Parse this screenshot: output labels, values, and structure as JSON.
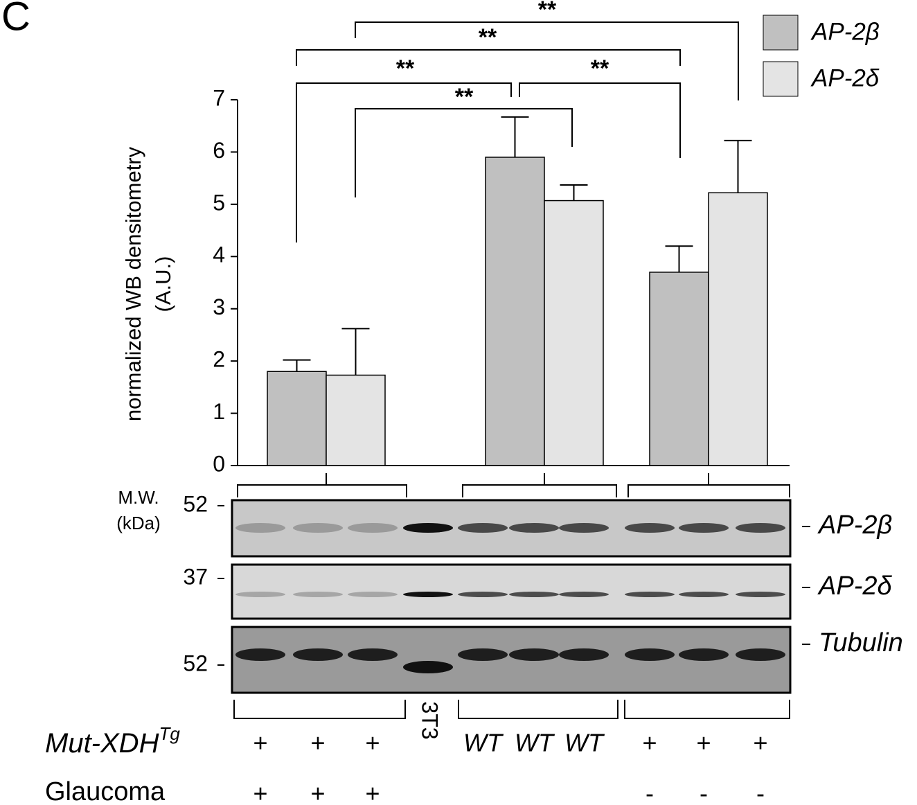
{
  "chart_data": {
    "type": "bar",
    "panel_label": "C",
    "y_label": [
      "normalized WB densitometry",
      "(A.U.)"
    ],
    "categories": [
      null,
      null,
      null
    ],
    "series": [
      {
        "name": "AP-2β",
        "color": "#c0c0c0",
        "values": [
          1.8,
          5.9,
          3.7
        ],
        "errors": [
          0.22,
          0.77,
          0.5
        ]
      },
      {
        "name": "AP-2δ",
        "color": "#e4e4e4",
        "values": [
          1.73,
          5.07,
          5.22
        ],
        "errors": [
          0.89,
          0.3,
          1.0
        ]
      }
    ],
    "ylim": [
      0,
      7
    ],
    "yticks": [
      0,
      1,
      2,
      3,
      4,
      5,
      6,
      7
    ],
    "significance": [
      "**",
      "**",
      "**",
      "**",
      "**"
    ],
    "blot": {
      "mw_label": [
        "M.W.",
        "(kDa)"
      ],
      "panels": [
        {
          "name": "AP-2β",
          "marker": "52"
        },
        {
          "name": "AP-2δ",
          "marker": "37"
        },
        {
          "name": "Tubulin",
          "marker": "52"
        }
      ],
      "control_lane": "3T3",
      "rows": [
        {
          "label": "Mut-XDH",
          "superscript": "Tg",
          "values": [
            "+",
            "+",
            "+",
            null,
            "WT",
            "WT",
            "WT",
            "+",
            "+",
            "+"
          ]
        },
        {
          "label": "Glaucoma",
          "values": [
            "+",
            "+",
            "+",
            null,
            null,
            null,
            null,
            "-",
            "-",
            "-"
          ]
        }
      ]
    }
  }
}
